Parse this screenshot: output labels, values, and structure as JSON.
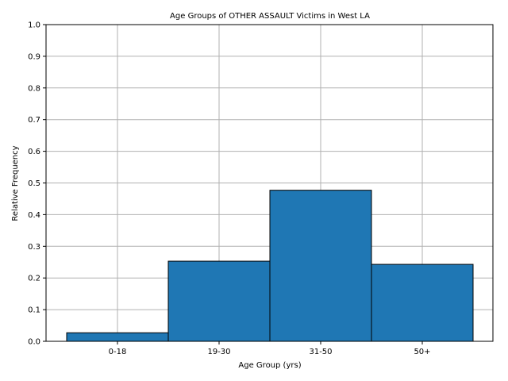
{
  "chart_data": {
    "type": "bar",
    "title": "Age Groups of OTHER ASSAULT Victims in West LA",
    "xlabel": "Age Group (yrs)",
    "ylabel": "Relative Frequency",
    "categories": [
      "0-18",
      "19-30",
      "31-50",
      "50+"
    ],
    "values": [
      0.027,
      0.253,
      0.477,
      0.243
    ],
    "ylim": [
      0,
      1.0
    ],
    "yticks": [
      "0.0",
      "0.1",
      "0.2",
      "0.3",
      "0.4",
      "0.5",
      "0.6",
      "0.7",
      "0.8",
      "0.9",
      "1.0"
    ],
    "grid": true,
    "colors": {
      "bar": "#1f77b4",
      "edge": "#000000",
      "grid": "#b0b0b0"
    }
  }
}
